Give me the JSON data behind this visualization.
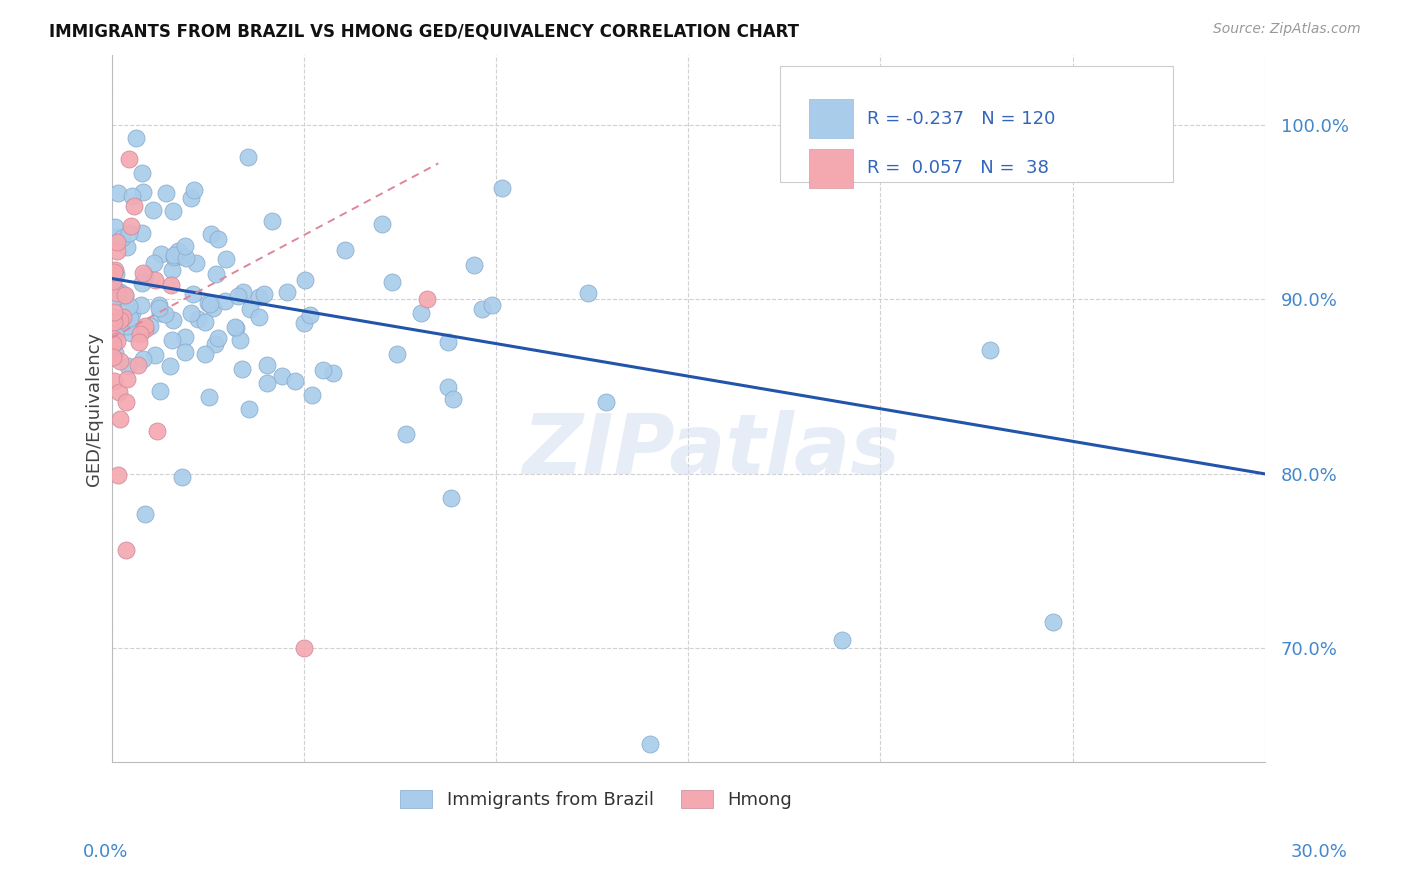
{
  "title": "IMMIGRANTS FROM BRAZIL VS HMONG GED/EQUIVALENCY CORRELATION CHART",
  "source": "Source: ZipAtlas.com",
  "ylabel": "GED/Equivalency",
  "ytick_vals": [
    0.7,
    0.8,
    0.9,
    1.0
  ],
  "xlim": [
    0.0,
    0.3
  ],
  "ylim": [
    0.635,
    1.04
  ],
  "brazil_R": -0.237,
  "brazil_N": 120,
  "hmong_R": 0.057,
  "hmong_N": 38,
  "brazil_color": "#A8CCEA",
  "hmong_color": "#F4A8B0",
  "brazil_line_color": "#2255AA",
  "hmong_line_color": "#DD8899",
  "brazil_line_x0": 0.0,
  "brazil_line_y0": 0.912,
  "brazil_line_x1": 0.3,
  "brazil_line_y1": 0.8,
  "hmong_line_x0": 0.0,
  "hmong_line_y0": 0.878,
  "hmong_line_x1": 0.085,
  "hmong_line_y1": 0.978
}
